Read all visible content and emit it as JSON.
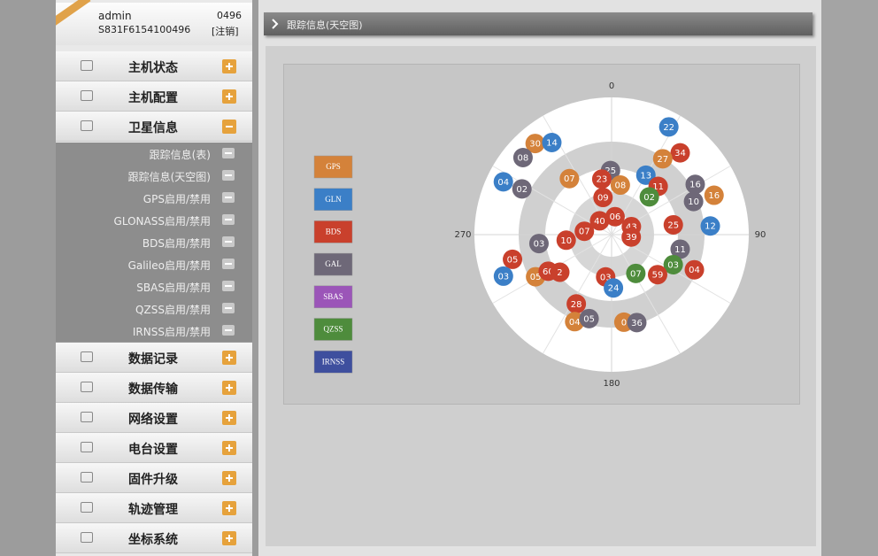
{
  "user": {
    "name": "admin",
    "serial": "S831F6154100496",
    "code": "0496",
    "logout": "[注销]"
  },
  "menu": [
    {
      "label": "主机状态"
    },
    {
      "label": "主机配置"
    },
    {
      "label": "卫星信息",
      "submenu": [
        "跟踪信息(表)",
        "跟踪信息(天空图)",
        "GPS启用/禁用",
        "GLONASS启用/禁用",
        "BDS启用/禁用",
        "Galileo启用/禁用",
        "SBAS启用/禁用",
        "QZSS启用/禁用",
        "IRNSS启用/禁用"
      ]
    },
    {
      "label": "数据记录"
    },
    {
      "label": "数据传输"
    },
    {
      "label": "网络设置"
    },
    {
      "label": "电台设置"
    },
    {
      "label": "固件升级"
    },
    {
      "label": "轨迹管理"
    },
    {
      "label": "坐标系统"
    }
  ],
  "breadcrumb": "跟踪信息(天空图)",
  "chart_data": {
    "type": "skyplot",
    "azimuth_ticks": [
      0,
      90,
      180,
      270
    ],
    "elevation_lim": [
      0,
      90
    ],
    "legend": [
      {
        "name": "GPS",
        "color": "#d4823a"
      },
      {
        "name": "GLN",
        "color": "#3b7fc7"
      },
      {
        "name": "BDS",
        "color": "#c9402c"
      },
      {
        "name": "GAL",
        "color": "#6e6878"
      },
      {
        "name": "SBAS",
        "color": "#9b55b8"
      },
      {
        "name": "QZSS",
        "color": "#4e8c3c"
      },
      {
        "name": "IRNSS",
        "color": "#3e4f9e"
      }
    ],
    "satellites": [
      {
        "prn": "22",
        "system": "GLN",
        "azimuth": 28,
        "elevation": 10
      },
      {
        "prn": "30",
        "system": "GPS",
        "azimuth": 320,
        "elevation": 12
      },
      {
        "prn": "14",
        "system": "GLN",
        "azimuth": 327,
        "elevation": 18
      },
      {
        "prn": "08",
        "system": "GAL",
        "azimuth": 311,
        "elevation": 13
      },
      {
        "prn": "34",
        "system": "BDS",
        "azimuth": 40,
        "elevation": 20
      },
      {
        "prn": "27",
        "system": "GPS",
        "azimuth": 34,
        "elevation": 30
      },
      {
        "prn": "04",
        "system": "GLN",
        "azimuth": 296,
        "elevation": 11
      },
      {
        "prn": "02",
        "system": "GAL",
        "azimuth": 297,
        "elevation": 24
      },
      {
        "prn": "07",
        "system": "GPS",
        "azimuth": 323,
        "elevation": 44
      },
      {
        "prn": "25",
        "system": "GAL",
        "azimuth": 359,
        "elevation": 48
      },
      {
        "prn": "23",
        "system": "BDS",
        "azimuth": 350,
        "elevation": 53
      },
      {
        "prn": "13",
        "system": "GLN",
        "azimuth": 30,
        "elevation": 45
      },
      {
        "prn": "08",
        "system": "GPS",
        "azimuth": 10,
        "elevation": 57
      },
      {
        "prn": "11",
        "system": "BDS",
        "azimuth": 44,
        "elevation": 46
      },
      {
        "prn": "16",
        "system": "GAL",
        "azimuth": 59,
        "elevation": 26
      },
      {
        "prn": "16",
        "system": "GPS",
        "azimuth": 69,
        "elevation": 18
      },
      {
        "prn": "10",
        "system": "GAL",
        "azimuth": 68,
        "elevation": 32
      },
      {
        "prn": "09",
        "system": "BDS",
        "azimuth": 347,
        "elevation": 65
      },
      {
        "prn": "02",
        "system": "QZSS",
        "azimuth": 45,
        "elevation": 55
      },
      {
        "prn": "06",
        "system": "BDS",
        "azimuth": 11,
        "elevation": 78
      },
      {
        "prn": "40",
        "system": "BDS",
        "azimuth": 319,
        "elevation": 78
      },
      {
        "prn": "43",
        "system": "BDS",
        "azimuth": 68,
        "elevation": 76
      },
      {
        "prn": "39",
        "system": "BDS",
        "azimuth": 97,
        "elevation": 77
      },
      {
        "prn": "07",
        "system": "BDS",
        "azimuth": 277,
        "elevation": 72
      },
      {
        "prn": "25",
        "system": "BDS",
        "azimuth": 81,
        "elevation": 49
      },
      {
        "prn": "12",
        "system": "GLN",
        "azimuth": 85,
        "elevation": 25
      },
      {
        "prn": "10",
        "system": "BDS",
        "azimuth": 263,
        "elevation": 60
      },
      {
        "prn": "03",
        "system": "GAL",
        "azimuth": 263,
        "elevation": 42
      },
      {
        "prn": "11",
        "system": "GAL",
        "azimuth": 102,
        "elevation": 44
      },
      {
        "prn": "05",
        "system": "BDS",
        "azimuth": 256,
        "elevation": 23
      },
      {
        "prn": "03",
        "system": "QZSS",
        "azimuth": 116,
        "elevation": 45
      },
      {
        "prn": "04",
        "system": "BDS",
        "azimuth": 113,
        "elevation": 31
      },
      {
        "prn": "03",
        "system": "GLN",
        "azimuth": 249,
        "elevation": 14
      },
      {
        "prn": "05",
        "system": "GPS",
        "azimuth": 241,
        "elevation": 33
      },
      {
        "prn": "60",
        "system": "BDS",
        "azimuth": 240,
        "elevation": 42
      },
      {
        "prn": "2",
        "system": "BDS",
        "azimuth": 234,
        "elevation": 48
      },
      {
        "prn": "03",
        "system": "BDS",
        "azimuth": 188,
        "elevation": 62
      },
      {
        "prn": "07",
        "system": "QZSS",
        "azimuth": 148,
        "elevation": 60
      },
      {
        "prn": "59",
        "system": "BDS",
        "azimuth": 131,
        "elevation": 50
      },
      {
        "prn": "24",
        "system": "GLN",
        "azimuth": 178,
        "elevation": 55
      },
      {
        "prn": "28",
        "system": "BDS",
        "azimuth": 207,
        "elevation": 39
      },
      {
        "prn": "04",
        "system": "GPS",
        "azimuth": 203,
        "elevation": 28
      },
      {
        "prn": "05",
        "system": "GAL",
        "azimuth": 195,
        "elevation": 33
      },
      {
        "prn": "0",
        "system": "GPS",
        "azimuth": 172,
        "elevation": 32
      },
      {
        "prn": "36",
        "system": "GAL",
        "azimuth": 164,
        "elevation": 30
      }
    ]
  }
}
